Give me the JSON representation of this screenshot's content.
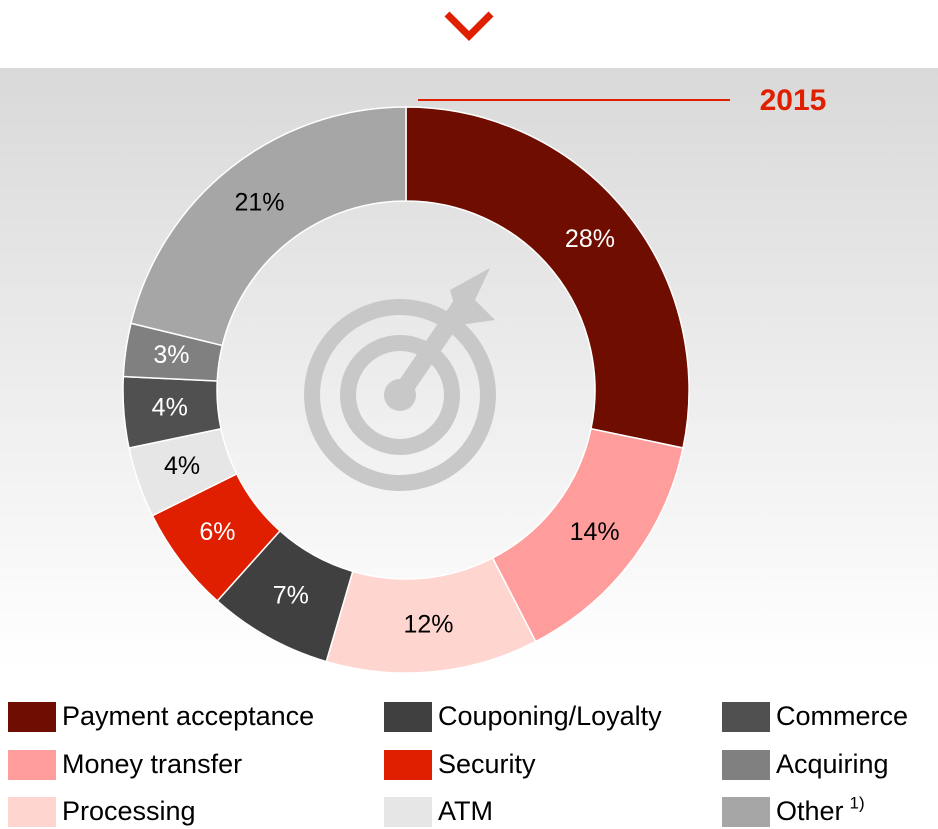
{
  "chart_data": {
    "type": "donut",
    "title": "2015",
    "categories": [
      "Payment acceptance",
      "Money transfer",
      "Processing",
      "Couponing/Loyalty",
      "Security",
      "ATM",
      "Commerce",
      "Acquiring",
      "Other"
    ],
    "values": [
      28,
      14,
      12,
      7,
      6,
      4,
      4,
      3,
      21
    ],
    "value_labels": [
      "28%",
      "14%",
      "12%",
      "7%",
      "6%",
      "4%",
      "4%",
      "3%",
      "21%"
    ],
    "colors": [
      "#6e0d00",
      "#ff9d9d",
      "#ffd5d0",
      "#404040",
      "#e01e00",
      "#e6e6e6",
      "#505050",
      "#808080",
      "#a6a6a6"
    ],
    "label_colors": [
      "#ffffff",
      "#000000",
      "#000000",
      "#ffffff",
      "#ffffff",
      "#000000",
      "#ffffff",
      "#ffffff",
      "#000000"
    ],
    "other_footnote": "1)"
  }
}
